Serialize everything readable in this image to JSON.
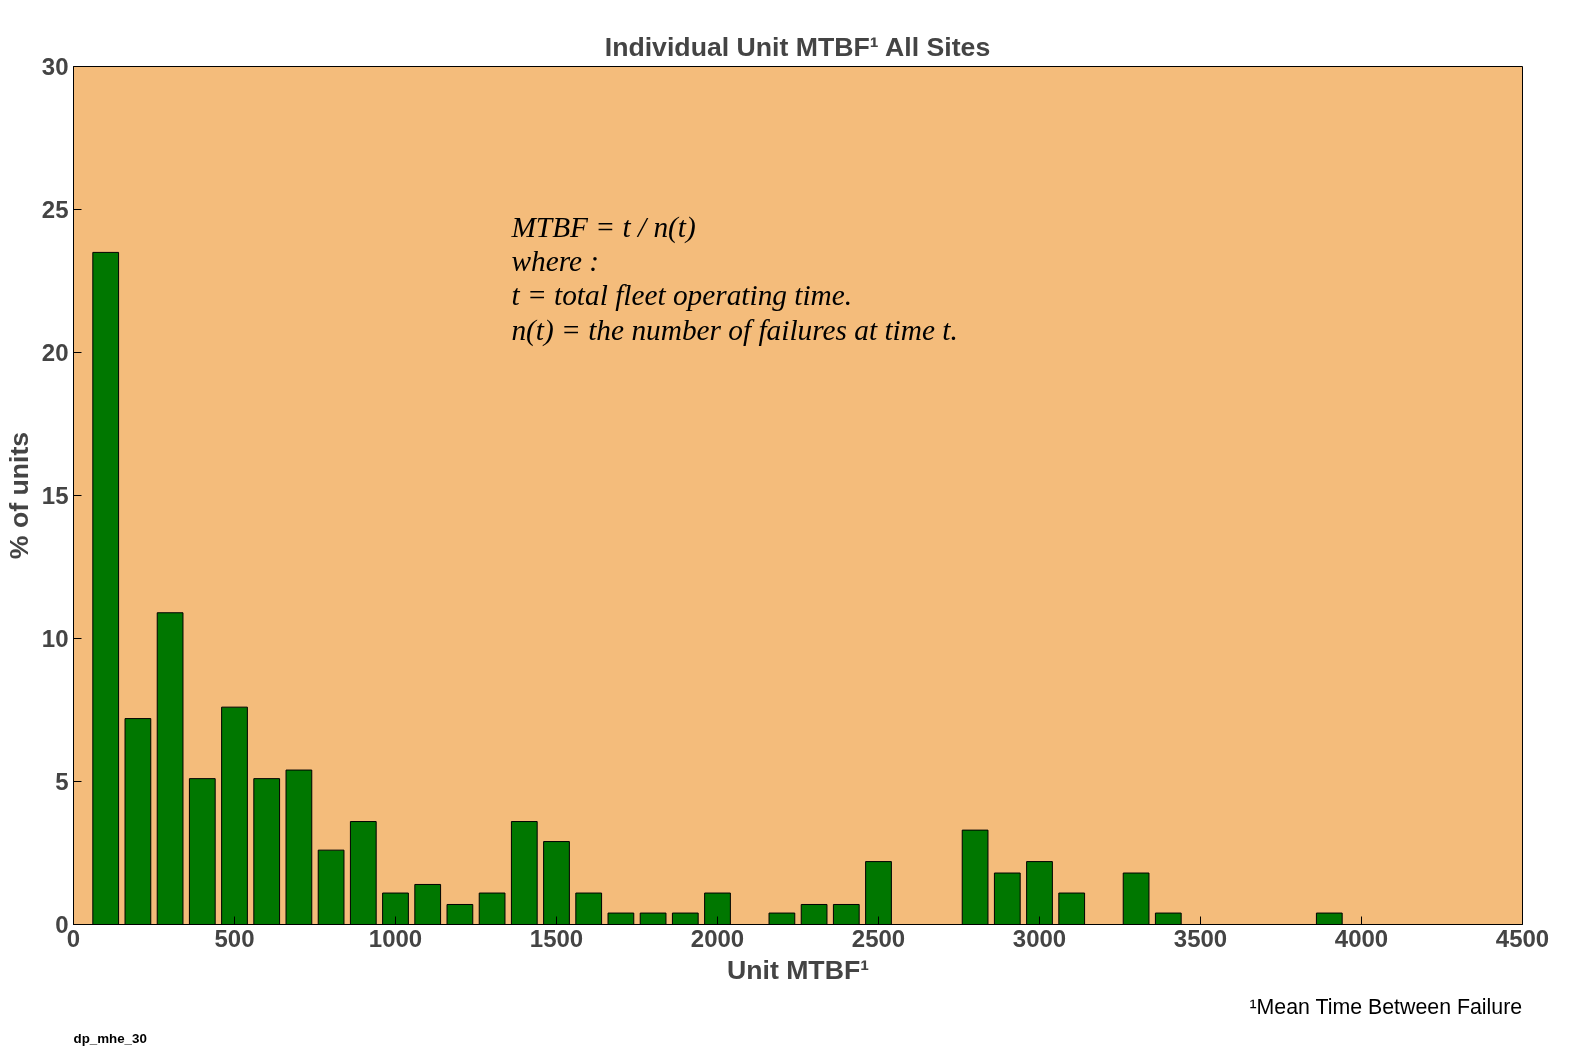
{
  "chart_data": {
    "type": "bar",
    "title": "Individual Unit MTBF¹ All Sites",
    "xlabel": "Unit MTBF¹",
    "ylabel": "% of units",
    "x": [
      100,
      200,
      300,
      400,
      500,
      600,
      700,
      800,
      900,
      1000,
      1100,
      1200,
      1300,
      1400,
      1500,
      1600,
      1700,
      1800,
      1900,
      2000,
      2200,
      2300,
      2400,
      2500,
      2800,
      2900,
      3000,
      3100,
      3300,
      3400,
      3900
    ],
    "series": [
      {
        "color": "#007700",
        "values": [
          23.5,
          7.2,
          10.9,
          5.1,
          7.6,
          5.1,
          5.4,
          2.6,
          3.6,
          1.1,
          1.4,
          0.7,
          1.1,
          3.6,
          2.9,
          1.1,
          0.4,
          0.4,
          0.4,
          1.1,
          0.4,
          0.7,
          0.7,
          2.2,
          3.3,
          1.8,
          2.2,
          1.1,
          1.8,
          0.4,
          0.4
        ]
      }
    ],
    "xlim": [
      0,
      4500
    ],
    "xticks": [
      0,
      500,
      1000,
      1500,
      2000,
      2500,
      3000,
      3500,
      4000,
      4500
    ],
    "ylim": [
      0,
      30
    ],
    "yticks": [
      0,
      5,
      10,
      15,
      20,
      25,
      30
    ],
    "grid": false,
    "annotations": [
      "MTBF = t / n(t)",
      "where :",
      "t = total fleet operating time.",
      "n(t) = the number of failures at time t.",
      "¹Mean Time Between Failure",
      "dp_mhe_30"
    ]
  }
}
